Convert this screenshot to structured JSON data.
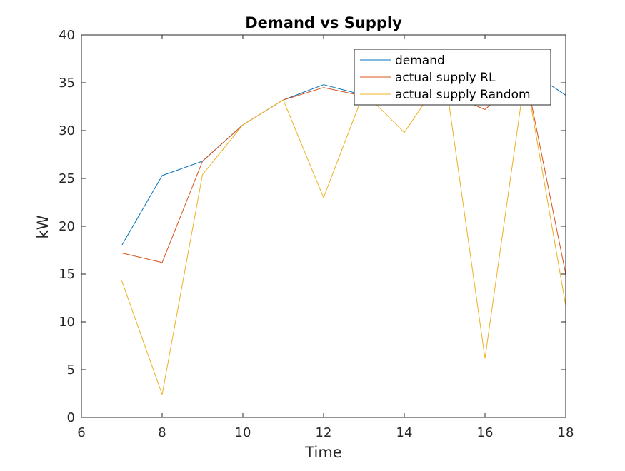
{
  "chart_data": {
    "type": "line",
    "title": "Demand vs Supply",
    "xlabel": "Time",
    "ylabel": "kW",
    "xlim": [
      6,
      18
    ],
    "ylim": [
      0,
      40
    ],
    "xticks": [
      6,
      8,
      10,
      12,
      14,
      16,
      18
    ],
    "yticks": [
      0,
      5,
      10,
      15,
      20,
      25,
      30,
      35,
      40
    ],
    "grid": false,
    "legend_position": "top-right",
    "x": [
      7,
      8,
      9,
      10,
      11,
      12,
      13,
      14,
      15,
      16,
      17,
      18
    ],
    "series": [
      {
        "name": "demand",
        "color": "#0072BD",
        "values": [
          18.0,
          25.3,
          26.8,
          30.6,
          33.2,
          34.8,
          33.7,
          33.3,
          34.0,
          33.0,
          36.5,
          33.7
        ]
      },
      {
        "name": "actual supply RL",
        "color": "#D95319",
        "values": [
          17.2,
          16.2,
          26.8,
          30.6,
          33.2,
          34.5,
          33.6,
          33.0,
          34.0,
          32.2,
          36.0,
          15.0
        ]
      },
      {
        "name": "actual supply Random",
        "color": "#EDB120",
        "values": [
          14.3,
          2.4,
          25.4,
          30.6,
          33.2,
          23.0,
          34.0,
          29.8,
          36.0,
          6.2,
          36.0,
          11.7
        ]
      }
    ]
  }
}
